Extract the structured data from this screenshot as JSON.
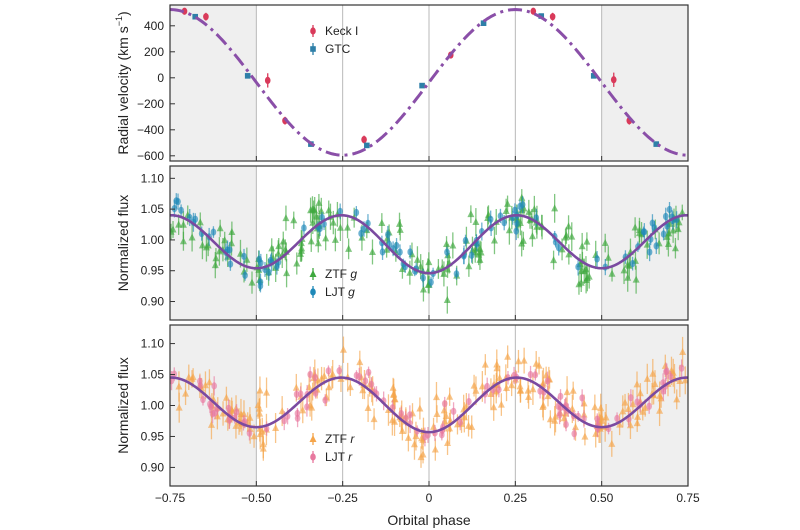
{
  "figure": {
    "xlabel": "Orbital phase",
    "x_ticks": [
      "−0.75",
      "−0.50",
      "−0.25",
      "0",
      "0.25",
      "0.50",
      "0.75"
    ]
  },
  "chart_data": [
    {
      "type": "scatter",
      "panel": "radial-velocity",
      "ylabel": "Radial velocity (km s",
      "ylabel_sup": "−1",
      "ylabel_end": ")",
      "xlim": [
        -0.75,
        0.75
      ],
      "ylim": [
        -640,
        560
      ],
      "y_ticks": [
        {
          "v": 400,
          "t": "400"
        },
        {
          "v": 200,
          "t": "200"
        },
        {
          "v": 0,
          "t": "0"
        },
        {
          "v": -200,
          "t": "−200"
        },
        {
          "v": -400,
          "t": "−400"
        },
        {
          "v": -600,
          "t": "−600"
        }
      ],
      "model": {
        "kind": "sine",
        "offset": -35,
        "amplitude": 560,
        "phase_of_max": 0.25,
        "period": 1.0,
        "color": "#8a4fa8",
        "style": "dash-dot"
      },
      "series": [
        {
          "name": "Keck I",
          "color": "#d93a5a",
          "marker": "circle",
          "points": [
            [
              -0.708,
              512,
              25
            ],
            [
              -0.646,
              470,
              30
            ],
            [
              -0.467,
              -20,
              55
            ],
            [
              -0.417,
              -330,
              30
            ],
            [
              -0.188,
              -475,
              30
            ],
            [
              0.063,
              175,
              25
            ],
            [
              0.302,
              512,
              25
            ],
            [
              0.358,
              470,
              30
            ],
            [
              0.535,
              -15,
              55
            ],
            [
              0.58,
              -330,
              30
            ]
          ]
        },
        {
          "name": "GTC",
          "color": "#2e7fa8",
          "marker": "square",
          "points": [
            [
              -0.677,
              470,
              15
            ],
            [
              -0.525,
              15,
              15
            ],
            [
              -0.342,
              -510,
              15
            ],
            [
              -0.18,
              -520,
              15
            ],
            [
              -0.02,
              -60,
              15
            ],
            [
              0.158,
              420,
              15
            ],
            [
              0.325,
              475,
              15
            ],
            [
              0.477,
              15,
              15
            ],
            [
              0.658,
              -510,
              15
            ]
          ]
        }
      ]
    },
    {
      "type": "scatter",
      "panel": "flux-g",
      "ylabel": "Normalized flux",
      "xlim": [
        -0.75,
        0.75
      ],
      "ylim": [
        0.87,
        1.12
      ],
      "y_ticks": [
        {
          "v": 1.1,
          "t": "1.10"
        },
        {
          "v": 1.05,
          "t": "1.05"
        },
        {
          "v": 1.0,
          "t": "1.00"
        },
        {
          "v": 0.95,
          "t": "0.95"
        },
        {
          "v": 0.9,
          "t": "0.90"
        }
      ],
      "model": {
        "kind": "cosine2",
        "offset": 0.995,
        "amplitude": 0.045,
        "dip_extra": 0.004,
        "color": "#7b4aa0",
        "style": "solid"
      },
      "series": [
        {
          "name": "ZTF g",
          "color": "#3ea83e",
          "marker": "triangle",
          "scatter": 0.022,
          "err": 0.018,
          "count": 190
        },
        {
          "name": "LJT g",
          "color": "#1e88b8",
          "marker": "circle",
          "scatter": 0.012,
          "err": 0.012,
          "count": 95
        }
      ]
    },
    {
      "type": "scatter",
      "panel": "flux-r",
      "ylabel": "Normalized flux",
      "xlim": [
        -0.75,
        0.75
      ],
      "ylim": [
        0.87,
        1.13
      ],
      "y_ticks": [
        {
          "v": 1.1,
          "t": "1.10"
        },
        {
          "v": 1.05,
          "t": "1.05"
        },
        {
          "v": 1.0,
          "t": "1.00"
        },
        {
          "v": 0.95,
          "t": "0.95"
        },
        {
          "v": 0.9,
          "t": "0.90"
        }
      ],
      "model": {
        "kind": "cosine2",
        "offset": 1.003,
        "amplitude": 0.042,
        "dip_extra": 0.004,
        "color": "#7b4aa0",
        "style": "solid"
      },
      "series": [
        {
          "name": "ZTF r",
          "color": "#f5a54a",
          "marker": "triangle",
          "scatter": 0.022,
          "err": 0.02,
          "count": 210
        },
        {
          "name": "LJT r",
          "color": "#e8799f",
          "marker": "circle",
          "scatter": 0.014,
          "err": 0.012,
          "count": 100
        }
      ]
    }
  ]
}
